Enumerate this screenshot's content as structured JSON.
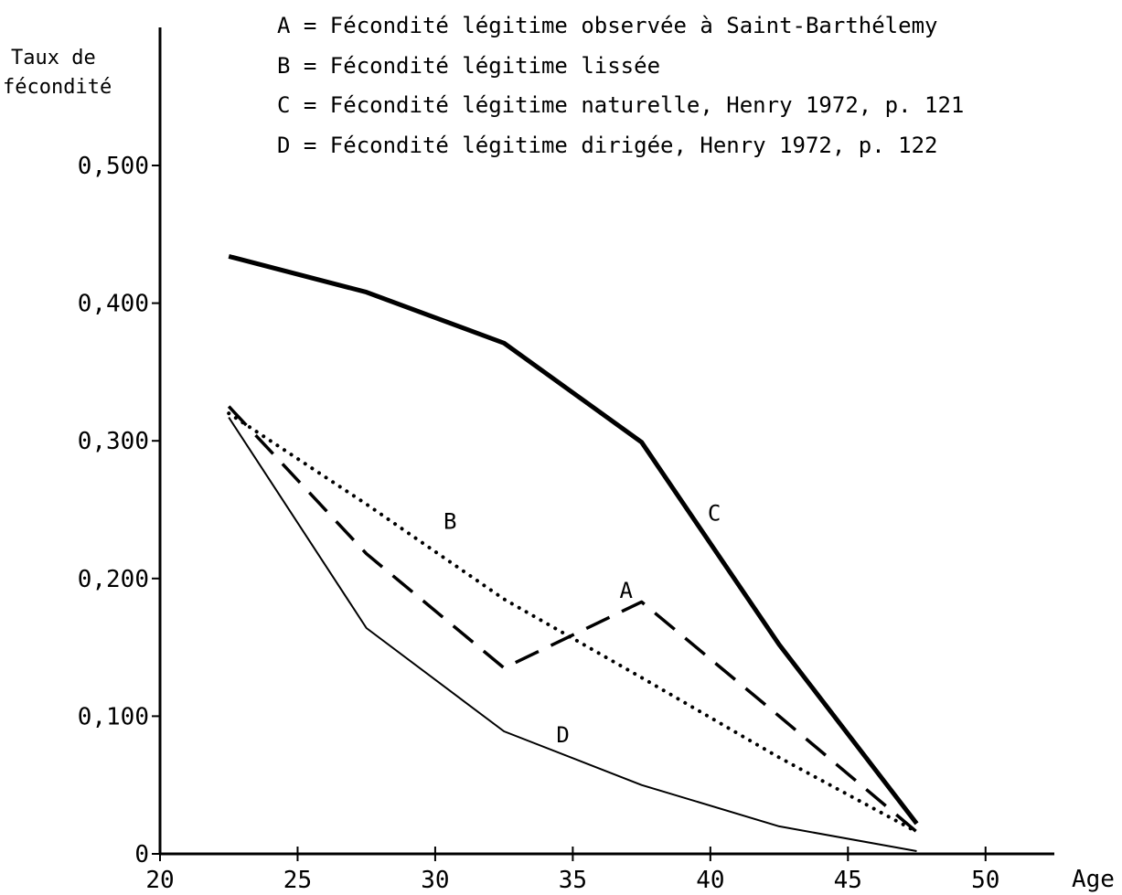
{
  "chart_data": {
    "type": "line",
    "title": "",
    "xlabel": "Age",
    "ylabel_line1": "Taux de",
    "ylabel_line2": "fécondité",
    "xlim": [
      20,
      52.5
    ],
    "ylim": [
      0,
      0.5
    ],
    "x_ticks": [
      20,
      25,
      30,
      35,
      40,
      45,
      50
    ],
    "x_tick_labels": [
      "20",
      "25",
      "30",
      "35",
      "40",
      "45",
      "50"
    ],
    "y_ticks": [
      0,
      0.1,
      0.2,
      0.3,
      0.4,
      0.5
    ],
    "y_tick_labels": [
      "0",
      "0,100",
      "0,200",
      "0,300",
      "0,400",
      "0,500"
    ],
    "legend_placement": "top",
    "legend": [
      "A = Fécondité légitime observée à Saint-Barthélemy",
      "B = Fécondité légitime lissée",
      "C = Fécondité légitime naturelle, Henry 1972, p. 121",
      "D = Fécondité légitime dirigée, Henry 1972, p. 122"
    ],
    "x": [
      22.5,
      27.5,
      32.5,
      37.5,
      42.5,
      47.5
    ],
    "series": [
      {
        "name": "A",
        "style": "dashed",
        "label_at": [
          36.7,
          0.186
        ],
        "values": [
          0.325,
          0.218,
          0.135,
          0.183,
          0.1,
          0.016
        ]
      },
      {
        "name": "B",
        "style": "dotted",
        "label_at": [
          30.3,
          0.236
        ],
        "values": [
          0.32,
          0.254,
          0.185,
          0.128,
          0.07,
          0.016
        ]
      },
      {
        "name": "C",
        "style": "thick",
        "label_at": [
          39.9,
          0.242
        ],
        "values": [
          0.434,
          0.408,
          0.371,
          0.299,
          0.152,
          0.022
        ]
      },
      {
        "name": "D",
        "style": "thin",
        "label_at": [
          34.4,
          0.081
        ],
        "values": [
          0.317,
          0.164,
          0.089,
          0.05,
          0.02,
          0.002
        ]
      }
    ]
  }
}
